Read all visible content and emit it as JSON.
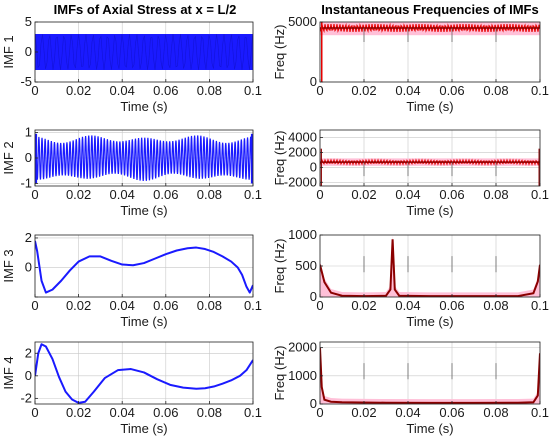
{
  "figure": {
    "left_title": "IMFs of Axial Stress at x = L/2",
    "right_title": "Instantaneous Frequencies of IMFs"
  },
  "colors": {
    "imf": "#1a1aff",
    "freq": "#e60000",
    "freq_trend": "#8b0000",
    "freq_band": "#ffc0d8",
    "grid": "#c8c8c8",
    "axis": "#222222"
  },
  "chart_data": [
    {
      "type": "line",
      "subplot": "imf-1",
      "ylabel": "IMF 1",
      "xlabel": "Time (s)",
      "xlim": [
        0,
        0.1
      ],
      "ylim": [
        -5,
        5
      ],
      "xticks": [
        0,
        0.02,
        0.04,
        0.06,
        0.08,
        0.1
      ],
      "yticks": [
        -5,
        0,
        5
      ],
      "tick_labels_x": [
        "0",
        "0.02",
        "0.04",
        "0.06",
        "0.08",
        "0.1"
      ],
      "tick_labels_y": [
        "-5",
        "0",
        "5"
      ],
      "grid": true,
      "signal": {
        "kind": "oscillation",
        "amplitude": 3.0,
        "offset": 0,
        "frequency_hz": 4500
      }
    },
    {
      "type": "line",
      "subplot": "imf-2",
      "ylabel": "IMF 2",
      "xlabel": "Time (s)",
      "xlim": [
        0,
        0.1
      ],
      "ylim": [
        -1.1,
        1.1
      ],
      "xticks": [
        0,
        0.02,
        0.04,
        0.06,
        0.08,
        0.1
      ],
      "yticks": [
        -1,
        0,
        1
      ],
      "tick_labels_x": [
        "0",
        "0.02",
        "0.04",
        "0.06",
        "0.08",
        "0.1"
      ],
      "tick_labels_y": [
        "-1",
        "0",
        "1"
      ],
      "grid": true,
      "signal": {
        "kind": "beating",
        "amplitude": 0.85,
        "modulation": 0.25,
        "frequency_hz": 700
      }
    },
    {
      "type": "line",
      "subplot": "imf-3",
      "ylabel": "IMF 3",
      "xlabel": "Time (s)",
      "xlim": [
        0,
        0.1
      ],
      "ylim": [
        -2.0,
        2.2
      ],
      "xticks": [
        0,
        0.02,
        0.04,
        0.06,
        0.08,
        0.1
      ],
      "yticks": [
        -2,
        0,
        2
      ],
      "tick_labels_x": [
        "0",
        "0.02",
        "0.04",
        "0.06",
        "0.08",
        "0.1"
      ],
      "tick_labels_y": [
        "",
        "0",
        "2"
      ],
      "grid": true,
      "x": [
        0,
        0.001,
        0.003,
        0.005,
        0.008,
        0.012,
        0.016,
        0.02,
        0.025,
        0.03,
        0.035,
        0.04,
        0.045,
        0.05,
        0.055,
        0.06,
        0.065,
        0.07,
        0.074,
        0.078,
        0.082,
        0.086,
        0.09,
        0.093,
        0.095,
        0.097,
        0.0985,
        0.1
      ],
      "y": [
        1.8,
        1.1,
        -0.9,
        -1.7,
        -1.5,
        -0.9,
        -0.2,
        0.4,
        0.75,
        0.75,
        0.45,
        0.2,
        0.15,
        0.3,
        0.6,
        0.9,
        1.15,
        1.3,
        1.35,
        1.25,
        1.05,
        0.75,
        0.4,
        0.0,
        -0.5,
        -1.3,
        -1.7,
        -1.2
      ]
    },
    {
      "type": "line",
      "subplot": "imf-4",
      "ylabel": "IMF 4",
      "xlabel": "Time (s)",
      "xlim": [
        0,
        0.1
      ],
      "ylim": [
        -2.5,
        3.0
      ],
      "xticks": [
        0,
        0.02,
        0.04,
        0.06,
        0.08,
        0.1
      ],
      "yticks": [
        -2,
        0,
        2
      ],
      "tick_labels_x": [
        "0",
        "0.02",
        "0.04",
        "0.06",
        "0.08",
        "0.1"
      ],
      "tick_labels_y": [
        "-2",
        "0",
        "2"
      ],
      "grid": true,
      "x": [
        0,
        0.0015,
        0.003,
        0.005,
        0.008,
        0.011,
        0.014,
        0.017,
        0.02,
        0.023,
        0.027,
        0.032,
        0.038,
        0.044,
        0.05,
        0.056,
        0.062,
        0.068,
        0.074,
        0.078,
        0.082,
        0.086,
        0.09,
        0.094,
        0.097,
        0.1
      ],
      "y": [
        0.0,
        2.0,
        2.8,
        2.6,
        1.5,
        -0.1,
        -1.4,
        -2.1,
        -2.4,
        -2.3,
        -1.4,
        -0.2,
        0.5,
        0.6,
        0.3,
        -0.3,
        -0.8,
        -1.05,
        -1.15,
        -1.1,
        -0.95,
        -0.7,
        -0.4,
        0.0,
        0.5,
        1.4
      ]
    },
    {
      "type": "line",
      "subplot": "freq-1",
      "ylabel": "Freq (Hz)",
      "xlabel": "Time (s)",
      "xlim": [
        0,
        0.1
      ],
      "ylim": [
        0,
        5000
      ],
      "xticks": [
        0,
        0.02,
        0.04,
        0.06,
        0.08,
        0.1
      ],
      "yticks": [
        0,
        5000
      ],
      "tick_labels_x": [
        "0",
        "0.02",
        "0.04",
        "0.06",
        "0.08",
        "0.1"
      ],
      "tick_labels_y": [
        "0",
        "5000"
      ],
      "grid": true,
      "signal": {
        "kind": "band",
        "center": 4500,
        "width": 600,
        "start_spike": 0
      }
    },
    {
      "type": "line",
      "subplot": "freq-2",
      "ylabel": "Freq (Hz)",
      "xlabel": "Time (s)",
      "xlim": [
        0,
        0.1
      ],
      "ylim": [
        -2500,
        5000
      ],
      "xticks": [
        0,
        0.02,
        0.04,
        0.06,
        0.08,
        0.1
      ],
      "yticks": [
        -2000,
        0,
        2000,
        4000
      ],
      "tick_labels_x": [
        "0",
        "0.02",
        "0.04",
        "0.06",
        "0.08",
        "0.1"
      ],
      "tick_labels_y": [
        "-2000",
        "0",
        "2000",
        "4000"
      ],
      "grid": true,
      "signal": {
        "kind": "band",
        "center": 700,
        "width": 500,
        "start_spike": 2500
      }
    },
    {
      "type": "line",
      "subplot": "freq-3",
      "ylabel": "Freq (Hz)",
      "xlabel": "Time (s)",
      "xlim": [
        0,
        0.1
      ],
      "ylim": [
        0,
        1000
      ],
      "xticks": [
        0,
        0.02,
        0.04,
        0.06,
        0.08,
        0.1
      ],
      "yticks": [
        0,
        500,
        1000
      ],
      "tick_labels_x": [
        "0",
        "0.02",
        "0.04",
        "0.06",
        "0.08",
        "0.1"
      ],
      "tick_labels_y": [
        "0",
        "500",
        "1000"
      ],
      "grid": true,
      "x": [
        0,
        0.002,
        0.005,
        0.01,
        0.02,
        0.03,
        0.032,
        0.033,
        0.034,
        0.036,
        0.05,
        0.07,
        0.09,
        0.097,
        0.099,
        0.1
      ],
      "y": [
        520,
        240,
        70,
        20,
        15,
        20,
        120,
        930,
        120,
        20,
        15,
        15,
        15,
        60,
        250,
        520
      ]
    },
    {
      "type": "line",
      "subplot": "freq-4",
      "ylabel": "Freq (Hz)",
      "xlabel": "Time (s)",
      "xlim": [
        0,
        0.1
      ],
      "ylim": [
        0,
        2200
      ],
      "xticks": [
        0,
        0.02,
        0.04,
        0.06,
        0.08,
        0.1
      ],
      "yticks": [
        0,
        1000,
        2000
      ],
      "tick_labels_x": [
        "0",
        "0.02",
        "0.04",
        "0.06",
        "0.08",
        "0.1"
      ],
      "tick_labels_y": [
        "0",
        "1000",
        "2000"
      ],
      "grid": true,
      "x": [
        0,
        0.0008,
        0.002,
        0.005,
        0.01,
        0.03,
        0.05,
        0.07,
        0.09,
        0.097,
        0.099,
        0.1
      ],
      "y": [
        2000,
        600,
        150,
        80,
        60,
        45,
        40,
        40,
        45,
        60,
        300,
        1800
      ]
    }
  ]
}
